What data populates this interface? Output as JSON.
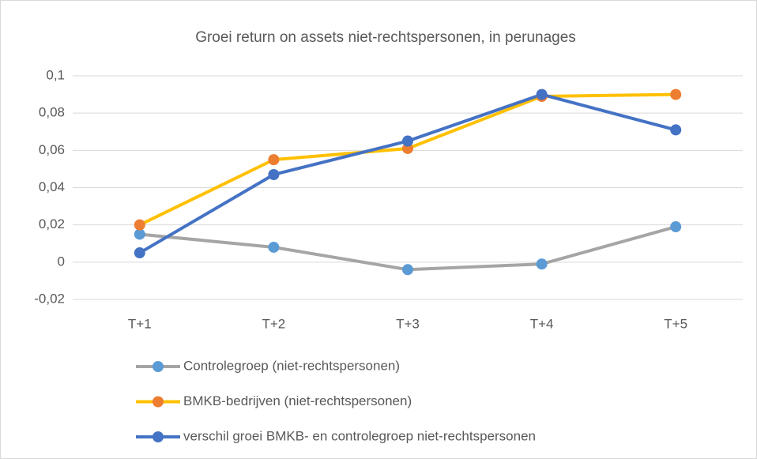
{
  "chart_data": {
    "type": "line",
    "title": "Groei return on assets niet-rechtspersonen, in perunages",
    "categories": [
      "T+1",
      "T+2",
      "T+3",
      "T+4",
      "T+5"
    ],
    "series": [
      {
        "name": "Controlegroep (niet-rechtspersonen)",
        "color": "#a5a5a5",
        "marker_color": "#5b9bd5",
        "values": [
          0.015,
          0.008,
          -0.004,
          -0.001,
          0.019
        ]
      },
      {
        "name": "BMKB-bedrijven (niet-rechtspersonen)",
        "color": "#ffc000",
        "marker_color": "#ed7d31",
        "values": [
          0.02,
          0.055,
          0.061,
          0.089,
          0.09
        ]
      },
      {
        "name": "verschil groei BMKB- en controlegroep niet-rechtspersonen",
        "color": "#4472c4",
        "marker_color": "#4472c4",
        "values": [
          0.005,
          0.047,
          0.065,
          0.09,
          0.071
        ]
      }
    ],
    "ylim": [
      -0.02,
      0.1
    ],
    "yticks": [
      {
        "value": -0.02,
        "label": "-0,02"
      },
      0,
      {
        "value": 0.02,
        "label": "0,02"
      },
      {
        "value": 0.04,
        "label": "0,04"
      },
      {
        "value": 0.06,
        "label": "0,06"
      },
      {
        "value": 0.08,
        "label": "0,08"
      },
      {
        "value": 0.1,
        "label": "0,1"
      }
    ],
    "grid": true,
    "legend": "bottom"
  }
}
